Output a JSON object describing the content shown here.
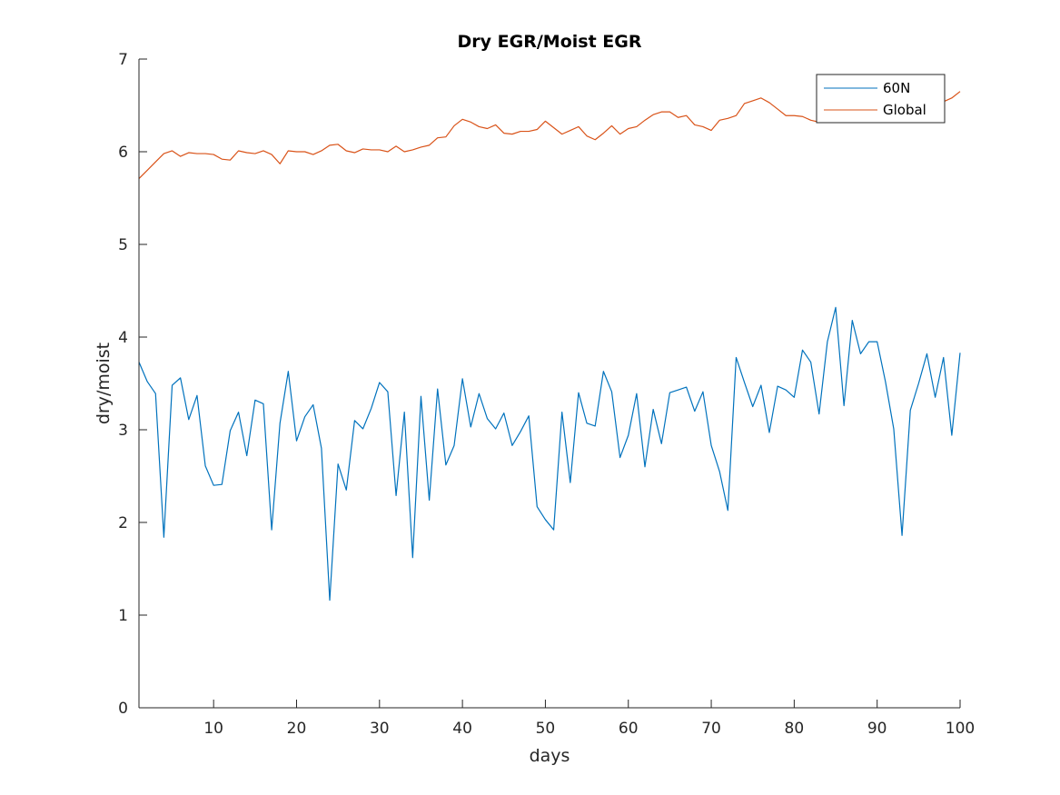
{
  "chart_data": {
    "type": "line",
    "title": "Dry EGR/Moist EGR",
    "xlabel": "days",
    "ylabel": "dry/moist",
    "xlim": [
      1,
      100
    ],
    "ylim": [
      0,
      7
    ],
    "xticks": [
      10,
      20,
      30,
      40,
      50,
      60,
      70,
      80,
      90,
      100
    ],
    "yticks": [
      0,
      1,
      2,
      3,
      4,
      5,
      6,
      7
    ],
    "legend_position": "top-right",
    "grid": false,
    "series": [
      {
        "name": "60N",
        "color": "#0072BD",
        "values": [
          3.73,
          3.52,
          3.39,
          1.84,
          3.48,
          3.56,
          3.11,
          3.37,
          2.61,
          2.4,
          2.41,
          2.99,
          3.19,
          2.72,
          3.32,
          3.28,
          1.92,
          3.07,
          3.63,
          2.88,
          3.14,
          3.27,
          2.8,
          1.16,
          2.63,
          2.35,
          3.1,
          3.01,
          3.23,
          3.51,
          3.41,
          2.29,
          3.19,
          1.62,
          3.36,
          2.24,
          3.44,
          2.62,
          2.83,
          3.55,
          3.03,
          3.39,
          3.12,
          3.01,
          3.18,
          2.83,
          2.98,
          3.15,
          2.17,
          2.03,
          1.92,
          3.19,
          2.43,
          3.4,
          3.07,
          3.04,
          3.63,
          3.41,
          2.7,
          2.94,
          3.39,
          2.6,
          3.22,
          2.85,
          3.4,
          3.43,
          3.46,
          3.2,
          3.41,
          2.83,
          2.55,
          2.13,
          3.78,
          3.51,
          3.25,
          3.48,
          2.97,
          3.47,
          3.43,
          3.35,
          3.86,
          3.73,
          3.17,
          3.95,
          4.32,
          3.26,
          4.18,
          3.82,
          3.95,
          3.95,
          3.52,
          3.01,
          1.86,
          3.21,
          3.5,
          3.82,
          3.35,
          3.78,
          2.94,
          3.83
        ]
      },
      {
        "name": "Global",
        "color": "#D95319",
        "values": [
          5.71,
          5.8,
          5.89,
          5.98,
          6.01,
          5.95,
          5.99,
          5.98,
          5.98,
          5.97,
          5.92,
          5.91,
          6.01,
          5.99,
          5.98,
          6.01,
          5.97,
          5.87,
          6.01,
          6.0,
          6.0,
          5.97,
          6.01,
          6.07,
          6.08,
          6.01,
          5.99,
          6.03,
          6.02,
          6.02,
          6.0,
          6.06,
          6.0,
          6.02,
          6.05,
          6.07,
          6.15,
          6.16,
          6.28,
          6.35,
          6.32,
          6.27,
          6.25,
          6.29,
          6.2,
          6.19,
          6.22,
          6.22,
          6.24,
          6.33,
          6.26,
          6.19,
          6.23,
          6.27,
          6.17,
          6.13,
          6.2,
          6.28,
          6.19,
          6.25,
          6.27,
          6.34,
          6.4,
          6.43,
          6.43,
          6.37,
          6.39,
          6.29,
          6.27,
          6.23,
          6.34,
          6.36,
          6.39,
          6.52,
          6.55,
          6.58,
          6.53,
          6.46,
          6.39,
          6.39,
          6.38,
          6.34,
          6.32,
          6.35,
          6.37,
          6.4,
          6.42,
          6.44,
          6.46,
          6.48,
          6.5,
          6.51,
          6.53,
          6.54,
          6.55,
          6.56,
          6.57,
          6.54,
          6.58,
          6.65
        ]
      }
    ]
  }
}
